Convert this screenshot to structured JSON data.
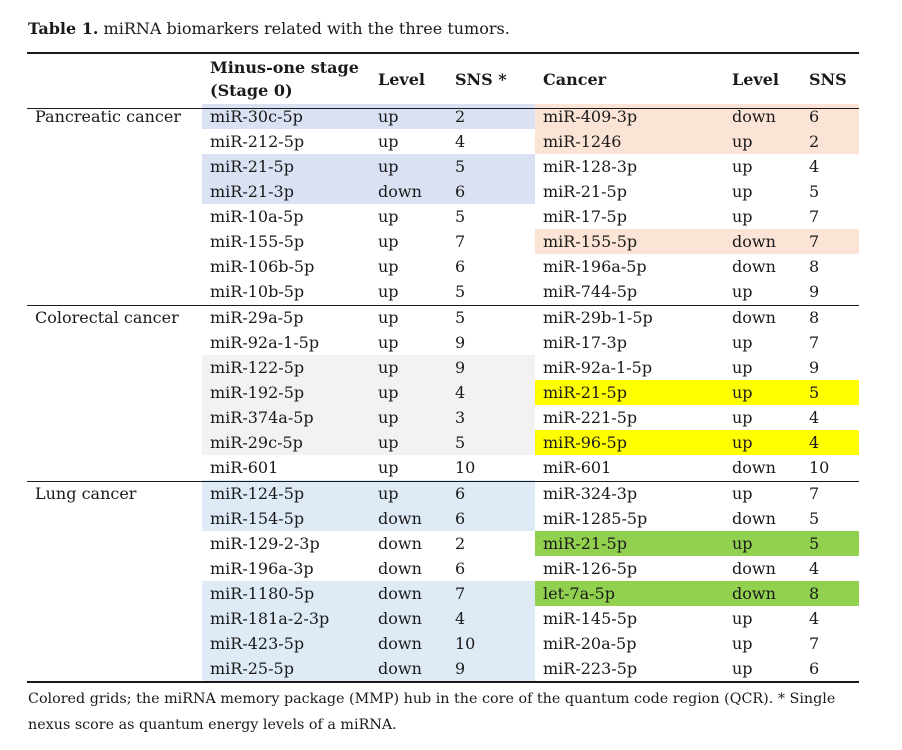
{
  "caption": {
    "label": "Table 1.",
    "text": " miRNA biomarkers related with the three tumors."
  },
  "headers": {
    "stage_line1": "Minus-one stage",
    "stage_line2": "(Stage 0)",
    "level": "Level",
    "sns": "SNS *",
    "cancer": "Cancer",
    "level2": "Level",
    "sns2": "SNS"
  },
  "colors": {
    "blue": "#d9e1f2",
    "grey": "#f2f2f2",
    "light_blue": "#deebf7",
    "peach": "#fbe4d5",
    "yellow": "#ffff00",
    "green": "#92d050"
  },
  "groups": [
    {
      "name": "Pancreatic cancer",
      "rows": [
        {
          "s0": "miR-30c-5p",
          "l0": "up",
          "n0": "2",
          "c": "miR-409-3p",
          "lc": "down",
          "nc": "6",
          "lf": "blue",
          "rt": "peach"
        },
        {
          "s0": "miR-212-5p",
          "l0": "up",
          "n0": "4",
          "c": "miR-1246",
          "lc": "up",
          "nc": "2",
          "lf": "",
          "rt": "peach"
        },
        {
          "s0": "miR-21-5p",
          "l0": "up",
          "n0": "5",
          "c": "miR-128-3p",
          "lc": "up",
          "nc": "4",
          "lf": "blue",
          "rt": ""
        },
        {
          "s0": "miR-21-3p",
          "l0": "down",
          "n0": "6",
          "c": "miR-21-5p",
          "lc": "up",
          "nc": "5",
          "lf": "blue",
          "rt": ""
        },
        {
          "s0": "miR-10a-5p",
          "l0": "up",
          "n0": "5",
          "c": "miR-17-5p",
          "lc": "up",
          "nc": "7",
          "lf": "",
          "rt": ""
        },
        {
          "s0": "miR-155-5p",
          "l0": "up",
          "n0": "7",
          "c": "miR-155-5p",
          "lc": "down",
          "nc": "7",
          "lf": "",
          "rt": "peach"
        },
        {
          "s0": "miR-106b-5p",
          "l0": "up",
          "n0": "6",
          "c": "miR-196a-5p",
          "lc": "down",
          "nc": "8",
          "lf": "",
          "rt": ""
        },
        {
          "s0": "miR-10b-5p",
          "l0": "up",
          "n0": "5",
          "c": "miR-744-5p",
          "lc": "up",
          "nc": "9",
          "lf": "",
          "rt": ""
        }
      ]
    },
    {
      "name": "Colorectal cancer",
      "rows": [
        {
          "s0": "miR-29a-5p",
          "l0": "up",
          "n0": "5",
          "c": "miR-29b-1-5p",
          "lc": "down",
          "nc": "8",
          "lf": "",
          "rt": ""
        },
        {
          "s0": "miR-92a-1-5p",
          "l0": "up",
          "n0": "9",
          "c": "miR-17-3p",
          "lc": "up",
          "nc": "7",
          "lf": "",
          "rt": ""
        },
        {
          "s0": "miR-122-5p",
          "l0": "up",
          "n0": "9",
          "c": "miR-92a-1-5p",
          "lc": "up",
          "nc": "9",
          "lf": "grey",
          "rt": ""
        },
        {
          "s0": "miR-192-5p",
          "l0": "up",
          "n0": "4",
          "c": "miR-21-5p",
          "lc": "up",
          "nc": "5",
          "lf": "grey",
          "rt": "yellow"
        },
        {
          "s0": "miR-374a-5p",
          "l0": "up",
          "n0": "3",
          "c": "miR-221-5p",
          "lc": "up",
          "nc": "4",
          "lf": "grey",
          "rt": ""
        },
        {
          "s0": "miR-29c-5p",
          "l0": "up",
          "n0": "5",
          "c": "miR-96-5p",
          "lc": "up",
          "nc": "4",
          "lf": "grey",
          "rt": "yellow"
        },
        {
          "s0": "miR-601",
          "l0": "up",
          "n0": "10",
          "c": "miR-601",
          "lc": "down",
          "nc": "10",
          "lf": "",
          "rt": ""
        }
      ]
    },
    {
      "name": "Lung cancer",
      "rows": [
        {
          "s0": "miR-124-5p",
          "l0": "up",
          "n0": "6",
          "c": "miR-324-3p",
          "lc": "up",
          "nc": "7",
          "lf": "light_blue",
          "rt": ""
        },
        {
          "s0": "miR-154-5p",
          "l0": "down",
          "n0": "6",
          "c": "miR-1285-5p",
          "lc": "down",
          "nc": "5",
          "lf": "light_blue",
          "rt": ""
        },
        {
          "s0": "miR-129-2-3p",
          "l0": "down",
          "n0": "2",
          "c": "miR-21-5p",
          "lc": "up",
          "nc": "5",
          "lf": "",
          "rt": "green"
        },
        {
          "s0": "miR-196a-3p",
          "l0": "down",
          "n0": "6",
          "c": "miR-126-5p",
          "lc": "down",
          "nc": "4",
          "lf": "",
          "rt": ""
        },
        {
          "s0": "miR-1180-5p",
          "l0": "down",
          "n0": "7",
          "c": "let-7a-5p",
          "lc": "down",
          "nc": "8",
          "lf": "light_blue",
          "rt": "green"
        },
        {
          "s0": "miR-181a-2-3p",
          "l0": "down",
          "n0": "4",
          "c": "miR-145-5p",
          "lc": "up",
          "nc": "4",
          "lf": "light_blue",
          "rt": ""
        },
        {
          "s0": "miR-423-5p",
          "l0": "down",
          "n0": "10",
          "c": "miR-20a-5p",
          "lc": "up",
          "nc": "7",
          "lf": "light_blue",
          "rt": ""
        },
        {
          "s0": "miR-25-5p",
          "l0": "down",
          "n0": "9",
          "c": "miR-223-5p",
          "lc": "up",
          "nc": "6",
          "lf": "light_blue",
          "rt": ""
        }
      ]
    }
  ],
  "footnote": "Colored grids; the miRNA memory package (MMP) hub in the core of the quantum code region (QCR). * Single nexus score as quantum energy levels of a miRNA."
}
